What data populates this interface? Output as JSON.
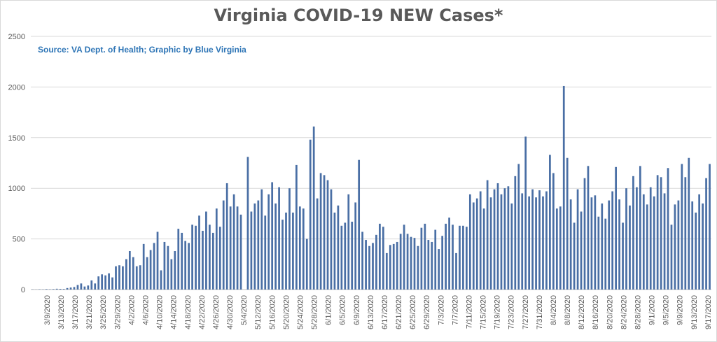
{
  "chart_data": {
    "type": "bar",
    "title": "Virginia COVID-19 NEW Cases*",
    "subtitle": "Source: VA Dept. of Health; Graphic by Blue Virginia",
    "xlabel": "",
    "ylabel": "",
    "ylim": [
      0,
      2500
    ],
    "yticks": [
      "0",
      "500",
      "1000",
      "1500",
      "2000",
      "2500"
    ],
    "grid": true,
    "colors": {
      "bar": "#4a6fa5",
      "grid": "#d9d9d9",
      "text": "#595959",
      "subtitle": "#2e75b6"
    },
    "x_tick_labels": [
      "3/9/2020",
      "3/13/2020",
      "3/17/2020",
      "3/21/2020",
      "3/25/2020",
      "3/29/2020",
      "4/2/2020",
      "4/6/2020",
      "4/10/2020",
      "4/14/2020",
      "4/18/2020",
      "4/22/2020",
      "4/26/2020",
      "4/30/2020",
      "5/4/2020",
      "5/12/2020",
      "5/16/2020",
      "5/20/2020",
      "5/24/2020",
      "5/28/2020",
      "6/1/2020",
      "6/5/2020",
      "6/9/2020",
      "6/13/2020",
      "6/17/2020",
      "6/21/2020",
      "6/25/2020",
      "6/29/2020",
      "7/3/2020",
      "7/7/2020",
      "7/11/2020",
      "7/15/2020",
      "7/19/2020",
      "7/23/2020",
      "7/27/2020",
      "7/31/2020",
      "8/4/2020",
      "8/8/2020",
      "8/12/2020",
      "8/16/2020",
      "8/20/2020",
      "8/24/2020",
      "8/28/2020",
      "9/1/2020",
      "9/5/2020",
      "9/9/2020",
      "9/13/2020",
      "9/17/2020"
    ],
    "values": [
      2,
      1,
      3,
      2,
      5,
      3,
      5,
      8,
      7,
      6,
      15,
      20,
      25,
      45,
      60,
      30,
      40,
      90,
      60,
      130,
      150,
      140,
      160,
      120,
      230,
      240,
      230,
      300,
      380,
      320,
      230,
      240,
      450,
      320,
      390,
      460,
      570,
      190,
      470,
      430,
      300,
      380,
      600,
      560,
      480,
      460,
      640,
      630,
      730,
      580,
      770,
      640,
      560,
      800,
      620,
      880,
      1050,
      820,
      940,
      820,
      740,
      0,
      1310,
      770,
      850,
      880,
      990,
      730,
      940,
      1060,
      850,
      1010,
      690,
      760,
      1000,
      760,
      1230,
      820,
      800,
      500,
      1480,
      1610,
      900,
      1150,
      1130,
      1080,
      990,
      760,
      830,
      630,
      660,
      940,
      670,
      860,
      1280,
      570,
      490,
      430,
      460,
      540,
      650,
      620,
      360,
      440,
      450,
      470,
      550,
      640,
      550,
      520,
      510,
      430,
      610,
      650,
      490,
      470,
      590,
      400,
      530,
      650,
      710,
      640,
      360,
      630,
      630,
      620,
      940,
      860,
      900,
      970,
      800,
      1080,
      910,
      990,
      1050,
      940,
      1000,
      1020,
      850,
      1120,
      1240,
      950,
      1510,
      920,
      990,
      910,
      980,
      920,
      970,
      1330,
      1150,
      800,
      820,
      2010,
      1300,
      890,
      660,
      990,
      770,
      1100,
      1220,
      910,
      930,
      720,
      850,
      700,
      880,
      970,
      1210,
      890,
      660,
      1000,
      830,
      1120,
      1010,
      1220,
      940,
      840,
      1010,
      920,
      1130,
      1110,
      950,
      1200,
      640,
      840,
      880,
      1240,
      1110,
      1300,
      870,
      760,
      940,
      850,
      1100,
      1240
    ]
  }
}
